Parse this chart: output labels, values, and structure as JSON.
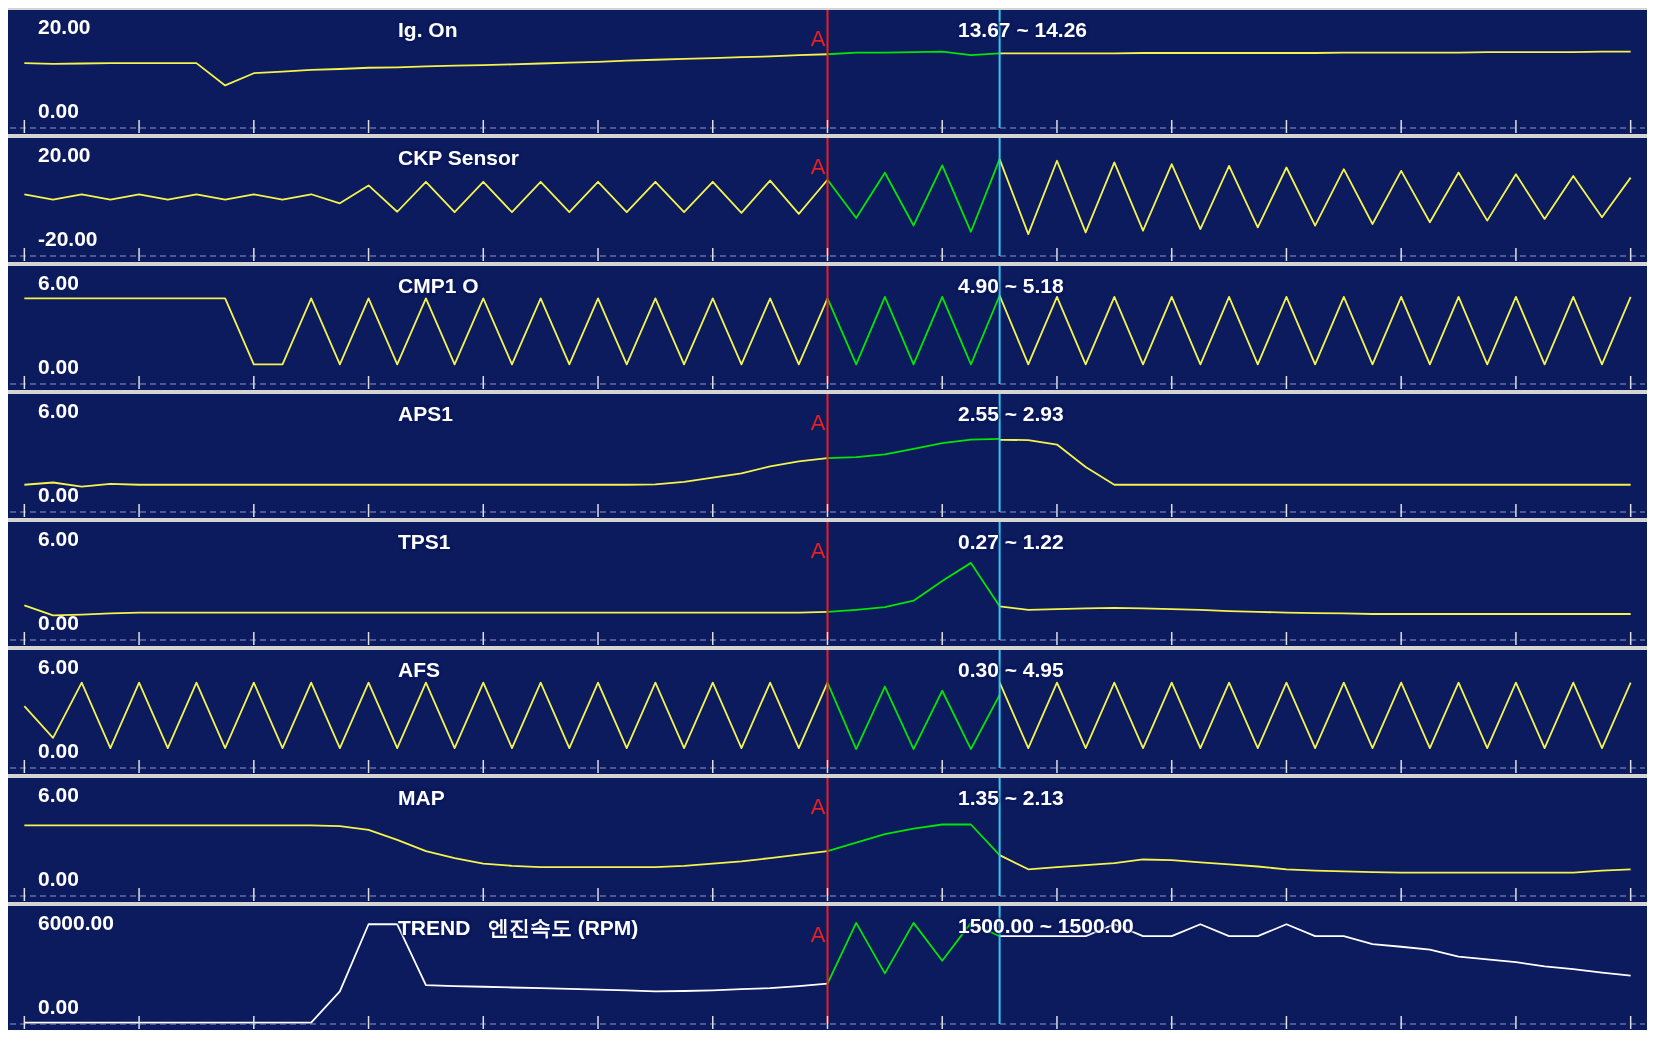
{
  "chart_data": [
    {
      "type": "line",
      "title": "Ig. On",
      "annotations": [
        "A",
        "13.67 ~ 14.26"
      ],
      "categories": [
        null,
        null,
        null,
        null,
        null,
        null,
        null,
        null,
        null,
        null,
        null,
        null,
        null,
        null,
        null,
        null,
        null,
        null,
        null,
        null,
        null,
        null,
        null,
        null,
        null,
        null,
        null,
        null,
        null,
        null,
        null,
        null,
        null,
        null,
        null,
        null,
        null,
        null,
        null,
        null,
        null,
        null,
        null,
        null,
        null,
        null,
        null,
        null,
        null,
        null,
        null,
        null,
        null,
        null,
        null,
        null,
        null
      ],
      "ylim": [
        -4,
        24
      ],
      "yticks": [
        {
          "value": 0,
          "label": "0.00"
        },
        {
          "value": 20,
          "label": "20.00"
        }
      ],
      "marker": "none",
      "series": [
        {
          "color": "#f4f44c",
          "values": [
            11.4,
            11.2,
            11.3,
            11.4,
            11.4,
            11.4,
            11.4,
            6.1,
            9.0,
            9.4,
            9.8,
            10.0,
            10.3,
            10.4,
            10.6,
            10.8,
            10.9,
            11.1,
            11.3,
            11.5,
            11.7,
            12.0,
            12.2,
            12.4,
            12.6,
            12.8,
            13.0,
            13.3,
            13.5,
            null,
            null,
            null,
            null,
            null,
            null,
            null,
            null,
            null,
            null,
            null,
            null,
            null,
            null,
            null,
            null,
            null,
            null,
            null,
            null,
            null,
            null,
            null,
            null,
            null,
            null,
            null,
            null
          ]
        },
        {
          "color": "#00e600",
          "values": [
            null,
            null,
            null,
            null,
            null,
            null,
            null,
            null,
            null,
            null,
            null,
            null,
            null,
            null,
            null,
            null,
            null,
            null,
            null,
            null,
            null,
            null,
            null,
            null,
            null,
            null,
            null,
            null,
            13.5,
            13.9,
            13.9,
            14.0,
            14.1,
            13.3,
            13.7,
            null,
            null,
            null,
            null,
            null,
            null,
            null,
            null,
            null,
            null,
            null,
            null,
            null,
            null,
            null,
            null,
            null,
            null,
            null,
            null,
            null,
            null
          ]
        },
        {
          "color": "#f4f44c",
          "values": [
            null,
            null,
            null,
            null,
            null,
            null,
            null,
            null,
            null,
            null,
            null,
            null,
            null,
            null,
            null,
            null,
            null,
            null,
            null,
            null,
            null,
            null,
            null,
            null,
            null,
            null,
            null,
            null,
            null,
            null,
            null,
            null,
            null,
            null,
            13.7,
            13.7,
            13.7,
            13.7,
            13.7,
            13.8,
            13.8,
            13.8,
            13.8,
            13.8,
            13.8,
            13.8,
            13.9,
            13.9,
            13.9,
            13.9,
            13.9,
            14.0,
            14.0,
            14.0,
            14.0,
            14.1,
            14.1
          ]
        }
      ]
    },
    {
      "type": "line",
      "title": "CKP Sensor",
      "annotations": [
        "A"
      ],
      "categories": [
        null,
        null,
        null,
        null,
        null,
        null,
        null,
        null,
        null,
        null,
        null,
        null,
        null,
        null,
        null,
        null,
        null,
        null,
        null,
        null,
        null,
        null,
        null,
        null,
        null,
        null,
        null,
        null,
        null,
        null,
        null,
        null,
        null,
        null,
        null,
        null,
        null,
        null,
        null,
        null,
        null,
        null,
        null,
        null,
        null,
        null,
        null,
        null,
        null,
        null,
        null,
        null,
        null,
        null,
        null,
        null,
        null
      ],
      "ylim": [
        -28,
        28
      ],
      "yticks": [
        {
          "value": -20,
          "label": "-20.00"
        },
        {
          "value": 20,
          "label": "20.00"
        }
      ],
      "marker": "none",
      "series": [
        {
          "color": "#f4f44c",
          "values": [
            1.3,
            -1.3,
            1.3,
            -1.3,
            1.3,
            -1.3,
            1.3,
            -1.3,
            1.3,
            -1.3,
            1.3,
            -3,
            5.5,
            -7,
            7.2,
            -7.2,
            7.2,
            -7.2,
            7.2,
            -7.2,
            7.2,
            -7.2,
            7.2,
            -7.2,
            7.2,
            -7.5,
            7.8,
            -8.0,
            8.2,
            null,
            null,
            null,
            null,
            null,
            null,
            null,
            null,
            null,
            null,
            null,
            null,
            null,
            null,
            null,
            null,
            null,
            null,
            null,
            null,
            null,
            null,
            null,
            null,
            null,
            null,
            null,
            null
          ]
        },
        {
          "color": "#00e600",
          "values": [
            null,
            null,
            null,
            null,
            null,
            null,
            null,
            null,
            null,
            null,
            null,
            null,
            null,
            null,
            null,
            null,
            null,
            null,
            null,
            null,
            null,
            null,
            null,
            null,
            null,
            null,
            null,
            null,
            8.2,
            -10,
            11.5,
            -13.5,
            15,
            -16.5,
            18,
            null,
            null,
            null,
            null,
            null,
            null,
            null,
            null,
            null,
            null,
            null,
            null,
            null,
            null,
            null,
            null,
            null,
            null,
            null,
            null,
            null,
            null
          ]
        },
        {
          "color": "#f4f44c",
          "values": [
            null,
            null,
            null,
            null,
            null,
            null,
            null,
            null,
            null,
            null,
            null,
            null,
            null,
            null,
            null,
            null,
            null,
            null,
            null,
            null,
            null,
            null,
            null,
            null,
            null,
            null,
            null,
            null,
            null,
            null,
            null,
            null,
            null,
            null,
            18,
            -17.6,
            17.2,
            -16.8,
            16.4,
            -16,
            15.6,
            -15.2,
            14.8,
            -14.4,
            14,
            -13.6,
            13.2,
            -12.8,
            12.4,
            -12,
            11.6,
            -11.2,
            10.8,
            -10.4,
            10,
            -9.6,
            9.2
          ]
        }
      ]
    },
    {
      "type": "line",
      "title": "CMP1 O",
      "annotations": [
        "4.90 ~ 5.18"
      ],
      "categories": [
        null,
        null,
        null,
        null,
        null,
        null,
        null,
        null,
        null,
        null,
        null,
        null,
        null,
        null,
        null,
        null,
        null,
        null,
        null,
        null,
        null,
        null,
        null,
        null,
        null,
        null,
        null,
        null,
        null,
        null,
        null,
        null,
        null,
        null,
        null,
        null,
        null,
        null,
        null,
        null,
        null,
        null,
        null,
        null,
        null,
        null,
        null,
        null,
        null,
        null,
        null,
        null,
        null,
        null,
        null,
        null,
        null
      ],
      "ylim": [
        -1.2,
        7.2
      ],
      "yticks": [
        {
          "value": 0,
          "label": "0.00"
        },
        {
          "value": 6,
          "label": "6.00"
        }
      ],
      "marker": "none",
      "series": [
        {
          "color": "#f4f44c",
          "values": [
            4.9,
            4.9,
            4.9,
            4.9,
            4.9,
            4.9,
            4.9,
            4.9,
            0.2,
            0.2,
            4.9,
            0.2,
            4.9,
            0.2,
            4.9,
            0.2,
            4.9,
            0.2,
            4.9,
            0.2,
            4.9,
            0.2,
            4.9,
            0.2,
            4.9,
            0.2,
            4.9,
            0.2,
            4.9,
            null,
            null,
            null,
            null,
            null,
            null,
            null,
            null,
            null,
            null,
            null,
            null,
            null,
            null,
            null,
            null,
            null,
            null,
            null,
            null,
            null,
            null,
            null,
            null,
            null,
            null,
            null,
            null
          ]
        },
        {
          "color": "#00e600",
          "values": [
            null,
            null,
            null,
            null,
            null,
            null,
            null,
            null,
            null,
            null,
            null,
            null,
            null,
            null,
            null,
            null,
            null,
            null,
            null,
            null,
            null,
            null,
            null,
            null,
            null,
            null,
            null,
            null,
            4.9,
            0.2,
            5.0,
            0.2,
            5.0,
            0.2,
            5.1,
            null,
            null,
            null,
            null,
            null,
            null,
            null,
            null,
            null,
            null,
            null,
            null,
            null,
            null,
            null,
            null,
            null,
            null,
            null,
            null,
            null,
            null
          ]
        },
        {
          "color": "#f4f44c",
          "values": [
            null,
            null,
            null,
            null,
            null,
            null,
            null,
            null,
            null,
            null,
            null,
            null,
            null,
            null,
            null,
            null,
            null,
            null,
            null,
            null,
            null,
            null,
            null,
            null,
            null,
            null,
            null,
            null,
            null,
            null,
            null,
            null,
            null,
            null,
            5.1,
            0.2,
            5.0,
            0.2,
            5.0,
            0.2,
            5.0,
            0.2,
            5.0,
            0.2,
            5.0,
            0.2,
            5.0,
            0.2,
            5.0,
            0.2,
            5.0,
            0.2,
            5.0,
            0.2,
            5.0,
            0.2,
            5.0
          ]
        }
      ]
    },
    {
      "type": "line",
      "title": "APS1",
      "annotations": [
        "A",
        "2.55 ~ 2.93"
      ],
      "categories": [
        null,
        null,
        null,
        null,
        null,
        null,
        null,
        null,
        null,
        null,
        null,
        null,
        null,
        null,
        null,
        null,
        null,
        null,
        null,
        null,
        null,
        null,
        null,
        null,
        null,
        null,
        null,
        null,
        null,
        null,
        null,
        null,
        null,
        null,
        null,
        null,
        null,
        null,
        null,
        null,
        null,
        null,
        null,
        null,
        null,
        null,
        null,
        null,
        null,
        null,
        null,
        null,
        null,
        null,
        null,
        null,
        null
      ],
      "ylim": [
        -1.2,
        7.2
      ],
      "yticks": [
        {
          "value": 0,
          "label": "0.00"
        },
        {
          "value": 6,
          "label": "6.00"
        }
      ],
      "marker": "none",
      "series": [
        {
          "color": "#f4f44c",
          "values": [
            0.74,
            0.9,
            0.6,
            0.8,
            0.74,
            0.74,
            0.74,
            0.74,
            0.74,
            0.74,
            0.74,
            0.74,
            0.74,
            0.74,
            0.74,
            0.74,
            0.74,
            0.74,
            0.74,
            0.74,
            0.74,
            0.74,
            0.76,
            0.95,
            1.25,
            1.55,
            2.05,
            2.4,
            2.63,
            null,
            null,
            null,
            null,
            null,
            null,
            null,
            null,
            null,
            null,
            null,
            null,
            null,
            null,
            null,
            null,
            null,
            null,
            null,
            null,
            null,
            null,
            null,
            null,
            null,
            null,
            null,
            null
          ]
        },
        {
          "color": "#00e600",
          "values": [
            null,
            null,
            null,
            null,
            null,
            null,
            null,
            null,
            null,
            null,
            null,
            null,
            null,
            null,
            null,
            null,
            null,
            null,
            null,
            null,
            null,
            null,
            null,
            null,
            null,
            null,
            null,
            null,
            2.63,
            2.7,
            2.9,
            3.3,
            3.7,
            3.95,
            4.0,
            null,
            null,
            null,
            null,
            null,
            null,
            null,
            null,
            null,
            null,
            null,
            null,
            null,
            null,
            null,
            null,
            null,
            null,
            null,
            null,
            null,
            null
          ]
        },
        {
          "color": "#f4f44c",
          "values": [
            null,
            null,
            null,
            null,
            null,
            null,
            null,
            null,
            null,
            null,
            null,
            null,
            null,
            null,
            null,
            null,
            null,
            null,
            null,
            null,
            null,
            null,
            null,
            null,
            null,
            null,
            null,
            null,
            null,
            null,
            null,
            null,
            null,
            null,
            3.94,
            3.92,
            3.6,
            2.0,
            0.74,
            0.74,
            0.74,
            0.74,
            0.74,
            0.74,
            0.74,
            0.74,
            0.74,
            0.74,
            0.74,
            0.74,
            0.74,
            0.74,
            0.74,
            0.74,
            0.74,
            0.74,
            0.74
          ]
        }
      ]
    },
    {
      "type": "line",
      "title": "TPS1",
      "annotations": [
        "A",
        "0.27 ~ 1.22"
      ],
      "categories": [
        null,
        null,
        null,
        null,
        null,
        null,
        null,
        null,
        null,
        null,
        null,
        null,
        null,
        null,
        null,
        null,
        null,
        null,
        null,
        null,
        null,
        null,
        null,
        null,
        null,
        null,
        null,
        null,
        null,
        null,
        null,
        null,
        null,
        null,
        null,
        null,
        null,
        null,
        null,
        null,
        null,
        null,
        null,
        null,
        null,
        null,
        null,
        null,
        null,
        null,
        null,
        null,
        null,
        null,
        null,
        null,
        null
      ],
      "ylim": [
        -1.2,
        7.2
      ],
      "yticks": [
        {
          "value": 0,
          "label": "0.00"
        },
        {
          "value": 6,
          "label": "6.00"
        }
      ],
      "marker": "none",
      "series": [
        {
          "color": "#f4f44c",
          "values": [
            1.26,
            0.55,
            0.6,
            0.69,
            0.75,
            0.75,
            0.75,
            0.75,
            0.75,
            0.75,
            0.75,
            0.75,
            0.75,
            0.75,
            0.75,
            0.75,
            0.75,
            0.75,
            0.75,
            0.75,
            0.75,
            0.75,
            0.75,
            0.75,
            0.75,
            0.75,
            0.75,
            0.75,
            0.8,
            null,
            null,
            null,
            null,
            null,
            null,
            null,
            null,
            null,
            null,
            null,
            null,
            null,
            null,
            null,
            null,
            null,
            null,
            null,
            null,
            null,
            null,
            null,
            null,
            null,
            null,
            null,
            null
          ]
        },
        {
          "color": "#00e600",
          "values": [
            null,
            null,
            null,
            null,
            null,
            null,
            null,
            null,
            null,
            null,
            null,
            null,
            null,
            null,
            null,
            null,
            null,
            null,
            null,
            null,
            null,
            null,
            null,
            null,
            null,
            null,
            null,
            null,
            0.8,
            0.95,
            1.14,
            1.6,
            3.0,
            4.29,
            1.2,
            null,
            null,
            null,
            null,
            null,
            null,
            null,
            null,
            null,
            null,
            null,
            null,
            null,
            null,
            null,
            null,
            null,
            null,
            null,
            null,
            null,
            null
          ]
        },
        {
          "color": "#f4f44c",
          "values": [
            null,
            null,
            null,
            null,
            null,
            null,
            null,
            null,
            null,
            null,
            null,
            null,
            null,
            null,
            null,
            null,
            null,
            null,
            null,
            null,
            null,
            null,
            null,
            null,
            null,
            null,
            null,
            null,
            null,
            null,
            null,
            null,
            null,
            null,
            1.2,
            0.95,
            1.0,
            1.05,
            1.09,
            1.05,
            1.0,
            0.95,
            0.86,
            0.8,
            0.75,
            0.72,
            0.69,
            0.65,
            0.65,
            0.65,
            0.65,
            0.65,
            0.65,
            0.65,
            0.65,
            0.65,
            0.65
          ]
        }
      ]
    },
    {
      "type": "line",
      "title": "AFS",
      "annotations": [
        "0.30 ~ 4.95"
      ],
      "categories": [
        null,
        null,
        null,
        null,
        null,
        null,
        null,
        null,
        null,
        null,
        null,
        null,
        null,
        null,
        null,
        null,
        null,
        null,
        null,
        null,
        null,
        null,
        null,
        null,
        null,
        null,
        null,
        null,
        null,
        null,
        null,
        null,
        null,
        null,
        null,
        null,
        null,
        null,
        null,
        null,
        null,
        null,
        null,
        null,
        null,
        null,
        null,
        null,
        null,
        null,
        null,
        null,
        null,
        null,
        null,
        null,
        null
      ],
      "ylim": [
        -1.2,
        7.2
      ],
      "yticks": [
        {
          "value": 0,
          "label": "0.00"
        },
        {
          "value": 6,
          "label": "6.00"
        }
      ],
      "marker": "none",
      "series": [
        {
          "color": "#f4f44c",
          "values": [
            3.2,
            0.95,
            4.88,
            0.22,
            4.88,
            0.22,
            4.88,
            0.22,
            4.88,
            0.22,
            4.88,
            0.22,
            4.88,
            0.22,
            4.88,
            0.22,
            4.88,
            0.22,
            4.88,
            0.22,
            4.88,
            0.22,
            4.88,
            0.22,
            4.88,
            0.22,
            4.88,
            0.22,
            4.88,
            null,
            null,
            null,
            null,
            null,
            null,
            null,
            null,
            null,
            null,
            null,
            null,
            null,
            null,
            null,
            null,
            null,
            null,
            null,
            null,
            null,
            null,
            null,
            null,
            null,
            null,
            null,
            null
          ]
        },
        {
          "color": "#00e600",
          "values": [
            null,
            null,
            null,
            null,
            null,
            null,
            null,
            null,
            null,
            null,
            null,
            null,
            null,
            null,
            null,
            null,
            null,
            null,
            null,
            null,
            null,
            null,
            null,
            null,
            null,
            null,
            null,
            null,
            4.88,
            0.15,
            4.6,
            0.15,
            4.3,
            0.15,
            4.0,
            null,
            null,
            null,
            null,
            null,
            null,
            null,
            null,
            null,
            null,
            null,
            null,
            null,
            null,
            null,
            null,
            null,
            null,
            null,
            null,
            null,
            null
          ]
        },
        {
          "color": "#f4f44c",
          "values": [
            null,
            null,
            null,
            null,
            null,
            null,
            null,
            null,
            null,
            null,
            null,
            null,
            null,
            null,
            null,
            null,
            null,
            null,
            null,
            null,
            null,
            null,
            null,
            null,
            null,
            null,
            null,
            null,
            null,
            null,
            null,
            null,
            null,
            null,
            4.9,
            0.22,
            4.88,
            0.22,
            4.88,
            0.22,
            4.88,
            0.22,
            4.88,
            0.22,
            4.88,
            0.22,
            4.88,
            0.22,
            4.88,
            0.22,
            4.88,
            0.22,
            4.88,
            0.22,
            4.88,
            0.22,
            4.88
          ]
        }
      ]
    },
    {
      "type": "line",
      "title": "MAP",
      "annotations": [
        "A",
        "1.35 ~ 2.13"
      ],
      "categories": [
        null,
        null,
        null,
        null,
        null,
        null,
        null,
        null,
        null,
        null,
        null,
        null,
        null,
        null,
        null,
        null,
        null,
        null,
        null,
        null,
        null,
        null,
        null,
        null,
        null,
        null,
        null,
        null,
        null,
        null,
        null,
        null,
        null,
        null,
        null,
        null,
        null,
        null,
        null,
        null,
        null,
        null,
        null,
        null,
        null,
        null,
        null,
        null,
        null,
        null,
        null,
        null,
        null,
        null,
        null,
        null,
        null
      ],
      "ylim": [
        -1.2,
        7.2
      ],
      "yticks": [
        {
          "value": 0,
          "label": "0.00"
        },
        {
          "value": 6,
          "label": "6.00"
        }
      ],
      "marker": "none",
      "series": [
        {
          "color": "#f4f44c",
          "values": [
            3.83,
            3.83,
            3.83,
            3.83,
            3.83,
            3.83,
            3.83,
            3.83,
            3.83,
            3.83,
            3.83,
            3.78,
            3.5,
            2.8,
            2.0,
            1.5,
            1.1,
            0.95,
            0.86,
            0.86,
            0.86,
            0.86,
            0.86,
            0.95,
            1.1,
            1.26,
            1.5,
            1.75,
            2.0,
            null,
            null,
            null,
            null,
            null,
            null,
            null,
            null,
            null,
            null,
            null,
            null,
            null,
            null,
            null,
            null,
            null,
            null,
            null,
            null,
            null,
            null,
            null,
            null,
            null,
            null,
            null,
            null
          ]
        },
        {
          "color": "#00e600",
          "values": [
            null,
            null,
            null,
            null,
            null,
            null,
            null,
            null,
            null,
            null,
            null,
            null,
            null,
            null,
            null,
            null,
            null,
            null,
            null,
            null,
            null,
            null,
            null,
            null,
            null,
            null,
            null,
            null,
            2.0,
            2.6,
            3.2,
            3.6,
            3.89,
            3.89,
            1.71,
            null,
            null,
            null,
            null,
            null,
            null,
            null,
            null,
            null,
            null,
            null,
            null,
            null,
            null,
            null,
            null,
            null,
            null,
            null,
            null,
            null,
            null
          ]
        },
        {
          "color": "#f4f44c",
          "values": [
            null,
            null,
            null,
            null,
            null,
            null,
            null,
            null,
            null,
            null,
            null,
            null,
            null,
            null,
            null,
            null,
            null,
            null,
            null,
            null,
            null,
            null,
            null,
            null,
            null,
            null,
            null,
            null,
            null,
            null,
            null,
            null,
            null,
            null,
            1.71,
            0.7,
            0.86,
            1.0,
            1.14,
            1.4,
            1.35,
            1.2,
            1.05,
            0.9,
            0.69,
            0.6,
            0.55,
            0.5,
            0.46,
            0.46,
            0.46,
            0.46,
            0.46,
            0.46,
            0.46,
            0.6,
            0.69
          ]
        }
      ]
    },
    {
      "type": "line",
      "title": "TREND   엔진속도 (RPM)",
      "annotations": [
        "A",
        "1500.00 ~ 1500.00"
      ],
      "categories": [
        null,
        null,
        null,
        null,
        null,
        null,
        null,
        null,
        null,
        null,
        null,
        null,
        null,
        null,
        null,
        null,
        null,
        null,
        null,
        null,
        null,
        null,
        null,
        null,
        null,
        null,
        null,
        null,
        null,
        null,
        null,
        null,
        null,
        null,
        null,
        null,
        null,
        null,
        null,
        null,
        null,
        null,
        null,
        null,
        null,
        null,
        null,
        null,
        null,
        null,
        null,
        null,
        null,
        null,
        null,
        null,
        null
      ],
      "ylim": [
        -1200,
        7200
      ],
      "yticks": [
        {
          "value": 0,
          "label": "0.00"
        },
        {
          "value": 6000,
          "label": "6000.00"
        }
      ],
      "marker": "none",
      "series": [
        {
          "color": "#ffffff",
          "values": [
            -1100,
            -1100,
            -1100,
            -1100,
            -1100,
            -1100,
            -1100,
            -1100,
            -1100,
            -1100,
            -1100,
            1120,
            5900,
            5900,
            1570,
            1500,
            1450,
            1400,
            1350,
            1300,
            1250,
            1200,
            1120,
            1150,
            1200,
            1280,
            1350,
            1500,
            1680,
            null,
            null,
            null,
            null,
            null,
            null,
            null,
            null,
            null,
            null,
            null,
            null,
            null,
            null,
            null,
            null,
            null,
            null,
            null,
            null,
            null,
            null,
            null,
            null,
            null,
            null,
            null,
            null
          ]
        },
        {
          "color": "#00e600",
          "values": [
            null,
            null,
            null,
            null,
            null,
            null,
            null,
            null,
            null,
            null,
            null,
            null,
            null,
            null,
            null,
            null,
            null,
            null,
            null,
            null,
            null,
            null,
            null,
            null,
            null,
            null,
            null,
            null,
            1680,
            6000,
            2400,
            6000,
            3300,
            6000,
            5050,
            null,
            null,
            null,
            null,
            null,
            null,
            null,
            null,
            null,
            null,
            null,
            null,
            null,
            null,
            null,
            null,
            null,
            null,
            null,
            null,
            null,
            null
          ]
        },
        {
          "color": "#ffffff",
          "values": [
            null,
            null,
            null,
            null,
            null,
            null,
            null,
            null,
            null,
            null,
            null,
            null,
            null,
            null,
            null,
            null,
            null,
            null,
            null,
            null,
            null,
            null,
            null,
            null,
            null,
            null,
            null,
            null,
            null,
            null,
            null,
            null,
            null,
            null,
            5050,
            5050,
            5050,
            5050,
            5900,
            5050,
            5050,
            5900,
            5050,
            5050,
            5900,
            5050,
            5050,
            4490,
            4300,
            4100,
            3600,
            3400,
            3200,
            2900,
            2700,
            2450,
            2240
          ]
        }
      ]
    }
  ]
}
